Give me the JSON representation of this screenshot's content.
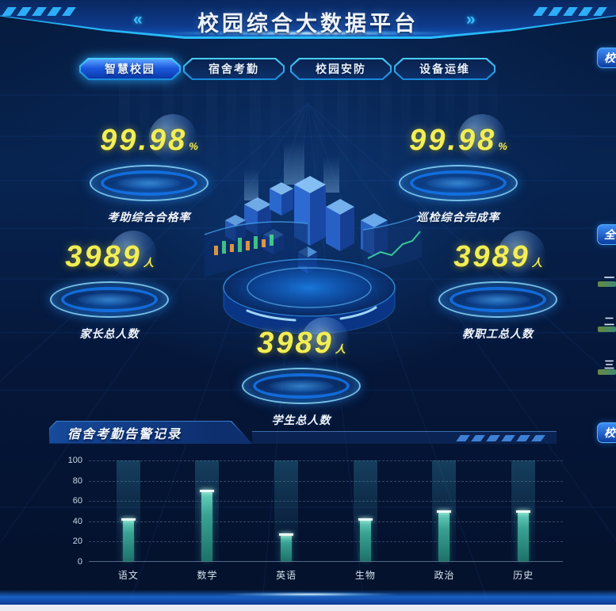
{
  "header": {
    "title": "校园综合大数据平台",
    "left_arrows": "«",
    "right_arrows": "»"
  },
  "tabs": [
    {
      "label": "智慧校园",
      "active": true
    },
    {
      "label": "宿舍考勤",
      "active": false
    },
    {
      "label": "校园安防",
      "active": false
    },
    {
      "label": "设备运维",
      "active": false
    }
  ],
  "stats": [
    {
      "value": "99.98",
      "unit": "%",
      "label": "考助综合合格率"
    },
    {
      "value": "99.98",
      "unit": "%",
      "label": "巡检综合完成率"
    },
    {
      "value": "3989",
      "unit": "人",
      "label": "家长总人数"
    },
    {
      "value": "3989",
      "unit": "人",
      "label": "教职工总人数"
    },
    {
      "value": "3989",
      "unit": "人",
      "label": "学生总人数"
    }
  ],
  "bottom_panel": {
    "title": "宿舍考勤告警记录"
  },
  "chart_data": {
    "type": "bar",
    "title": "宿舍考勤告警记录",
    "categories": [
      "语文",
      "数学",
      "英语",
      "生物",
      "政治",
      "历史"
    ],
    "values": [
      42,
      70,
      27,
      42,
      50,
      50
    ],
    "xlabel": "",
    "ylabel": "",
    "ylim": [
      0,
      100
    ],
    "yticks": [
      0,
      20,
      40,
      60,
      80,
      100
    ],
    "grid": true,
    "legend": false,
    "bar_color": "#39a292"
  },
  "right_edge": {
    "top_panel_partial": "校",
    "mid_panel_partial": "全",
    "rank_items": [
      "一",
      "二",
      "三"
    ],
    "bottom_panel_partial": "校"
  },
  "colors": {
    "background": "#051638",
    "accent_cyan": "#35c3ff",
    "accent_blue": "#1c5ae0",
    "number_yellow": "#f2ee55",
    "bar_teal": "#39a292",
    "text_light": "#eef3fa"
  }
}
